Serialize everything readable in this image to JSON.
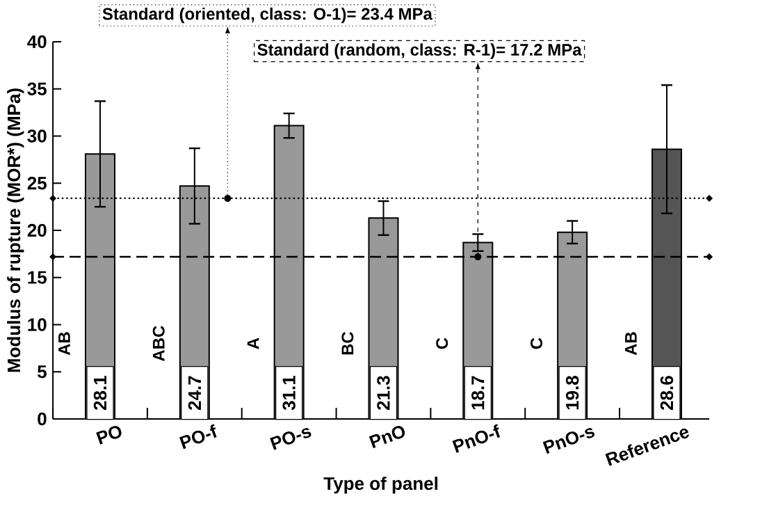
{
  "chart_data": {
    "type": "bar",
    "xlabel": "Type of panel",
    "ylabel": "Modulus of rupture (MOR*) (MPa)",
    "categories": [
      "PO",
      "PO-f",
      "PO-s",
      "PnO",
      "PnO-f",
      "PnO-s",
      "Reference"
    ],
    "values": [
      28.1,
      24.7,
      31.1,
      21.3,
      18.7,
      19.8,
      28.6
    ],
    "errors": [
      5.6,
      4.0,
      1.3,
      1.8,
      0.9,
      1.2,
      6.8
    ],
    "colors": [
      "#999999",
      "#999999",
      "#999999",
      "#999999",
      "#999999",
      "#999999",
      "#555555"
    ],
    "data_labels": true,
    "annotations": [
      "AB",
      "ABC",
      "A",
      "BC",
      "C",
      "C",
      "AB"
    ],
    "ref_lines": [
      {
        "axis": "y",
        "value": 23.4,
        "label": "Standard (oriented, class: O-1)= 23.4 MPa",
        "line_style": "dotted",
        "color": "#000000"
      },
      {
        "axis": "y",
        "value": 17.2,
        "label": "Standard (random, class: R-1)= 17.2 MPa",
        "line_style": "dashed",
        "color": "#000000"
      }
    ],
    "ylim": [
      0,
      40
    ],
    "yticks": [
      0,
      5,
      10,
      15,
      20,
      25,
      30,
      35,
      40
    ],
    "grid": false
  }
}
